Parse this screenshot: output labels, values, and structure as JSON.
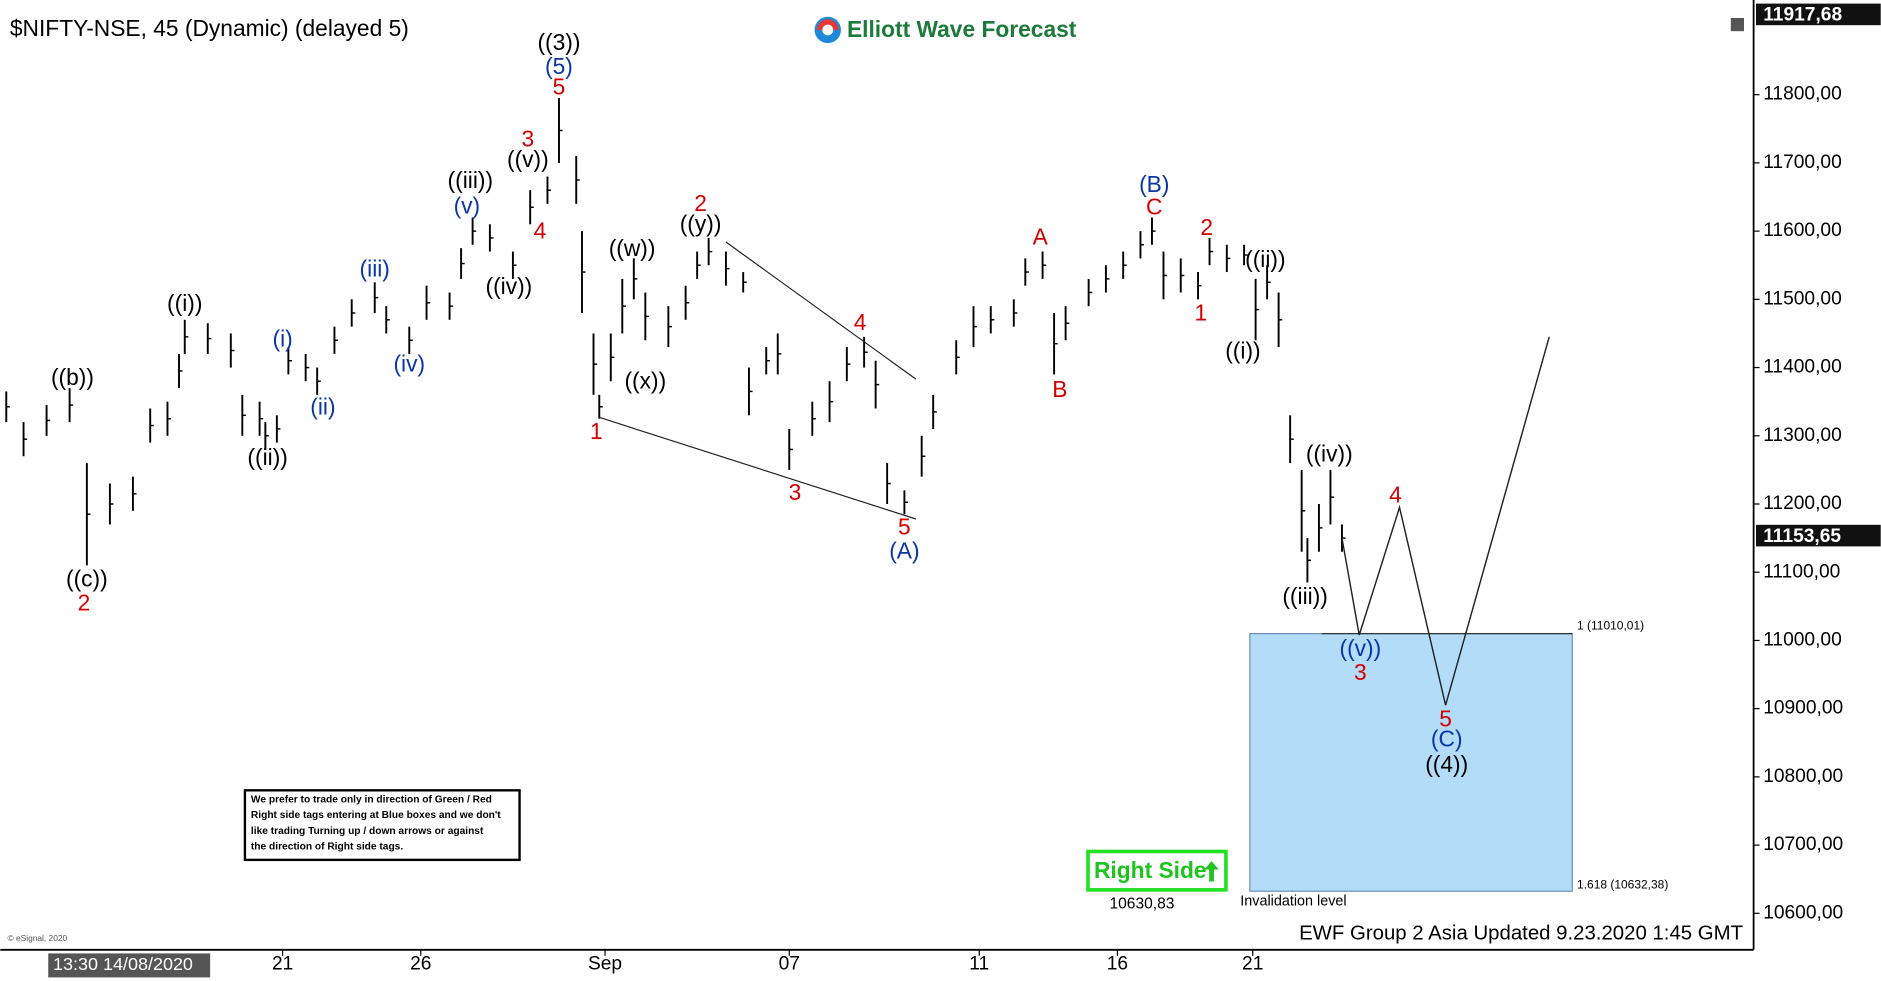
{
  "chart_data": {
    "type": "ohlc",
    "title": "$NIFTY-NSE, 45 (Dynamic) (delayed 5)",
    "logo": "Elliott Wave Forecast",
    "footer": "EWF Group 2 Asia Updated 9.23.2020 1:45 GMT",
    "copyright": "© eSignal, 2020",
    "start_label": "13:30 14/08/2020",
    "note": [
      "We prefer to trade only in direction of Green / Red",
      "Right side tags entering at Blue boxes and we don't",
      "like trading Turning up / down arrows or against",
      "the direction of Right side tags."
    ],
    "right_side": {
      "label": "Right Side",
      "price": {
        "value": 10630.83,
        "label": "10630,83"
      }
    },
    "invalidation_label": "Invalidation level",
    "xlim": [
      0,
      303.5
    ],
    "ylim": [
      10550,
      11930
    ],
    "xticks": [
      {
        "value": 48,
        "label": "21"
      },
      {
        "value": 72,
        "label": "26"
      },
      {
        "value": 104,
        "label": "Sep"
      },
      {
        "value": 136,
        "label": "07"
      },
      {
        "value": 169,
        "label": "11"
      },
      {
        "value": 193,
        "label": "16"
      },
      {
        "value": 216.5,
        "label": "21"
      }
    ],
    "yticks": [
      {
        "value": 10600,
        "label": "10600,00"
      },
      {
        "value": 10700,
        "label": "10700,00"
      },
      {
        "value": 10800,
        "label": "10800,00"
      },
      {
        "value": 10900,
        "label": "10900,00"
      },
      {
        "value": 11000,
        "label": "11000,00"
      },
      {
        "value": 11100,
        "label": "11100,00"
      },
      {
        "value": 11200,
        "label": "11200,00"
      },
      {
        "value": 11300,
        "label": "11300,00"
      },
      {
        "value": 11400,
        "label": "11400,00"
      },
      {
        "value": 11500,
        "label": "11500,00"
      },
      {
        "value": 11600,
        "label": "11600,00"
      },
      {
        "value": 11700,
        "label": "11700,00"
      },
      {
        "value": 11800,
        "label": "11800,00"
      }
    ],
    "price_tags": [
      {
        "value": 11917.68,
        "label": "11917,68"
      },
      {
        "value": 11153.65,
        "label": "11153,65"
      }
    ],
    "bars": {
      "x": [
        0,
        3,
        7,
        11,
        14,
        18,
        22,
        25,
        28,
        30,
        31,
        35,
        39,
        41,
        44,
        45,
        47,
        49,
        52,
        54,
        57,
        60,
        64,
        66,
        70,
        73,
        77,
        79,
        81,
        84,
        88,
        91,
        94,
        96,
        99,
        100,
        102,
        103,
        105,
        107,
        109,
        111,
        115,
        118,
        120,
        122,
        125,
        128,
        129,
        132,
        134,
        136,
        140,
        143,
        146,
        149,
        151,
        153,
        156,
        159,
        161,
        165,
        168,
        171,
        175,
        177,
        180,
        182,
        184,
        188,
        191,
        194,
        197,
        199,
        201,
        204,
        207,
        209,
        212,
        215,
        217,
        219,
        221,
        223,
        225,
        226,
        228,
        230,
        232
      ],
      "high": [
        11365,
        11320,
        11345,
        11370,
        11260,
        11230,
        11240,
        11340,
        11350,
        11420,
        11470,
        11465,
        11450,
        11360,
        11350,
        11320,
        11330,
        11430,
        11420,
        11400,
        11460,
        11500,
        11525,
        11490,
        11460,
        11520,
        11510,
        11575,
        11620,
        11610,
        11570,
        11660,
        11680,
        11795,
        11710,
        11600,
        11450,
        11360,
        11450,
        11530,
        11560,
        11510,
        11490,
        11520,
        11570,
        11590,
        11570,
        11540,
        11400,
        11430,
        11450,
        11310,
        11350,
        11380,
        11430,
        11445,
        11410,
        11260,
        11220,
        11300,
        11360,
        11440,
        11490,
        11490,
        11500,
        11560,
        11570,
        11480,
        11490,
        11530,
        11550,
        11570,
        11600,
        11620,
        11570,
        11560,
        11540,
        11590,
        11580,
        11580,
        11530,
        11550,
        11510,
        11330,
        11250,
        11150,
        11200,
        11250,
        11170
      ],
      "low": [
        11320,
        11270,
        11300,
        11320,
        11110,
        11170,
        11190,
        11290,
        11300,
        11370,
        11420,
        11420,
        11400,
        11300,
        11300,
        11280,
        11290,
        11390,
        11380,
        11360,
        11420,
        11460,
        11480,
        11450,
        11420,
        11470,
        11470,
        11530,
        11580,
        11570,
        11530,
        11610,
        11640,
        11700,
        11640,
        11480,
        11360,
        11325,
        11380,
        11450,
        11500,
        11440,
        11430,
        11470,
        11530,
        11550,
        11520,
        11510,
        11330,
        11390,
        11390,
        11250,
        11300,
        11320,
        11380,
        11400,
        11340,
        11200,
        11185,
        11240,
        11310,
        11390,
        11430,
        11450,
        11460,
        11520,
        11530,
        11390,
        11440,
        11490,
        11510,
        11530,
        11560,
        11580,
        11500,
        11510,
        11500,
        11550,
        11540,
        11550,
        11440,
        11500,
        11430,
        11260,
        11130,
        11085,
        11130,
        11170,
        11130
      ]
    },
    "trendlines": [
      {
        "x": [
          103,
          158
        ],
        "y": [
          11327,
          11178
        ]
      },
      {
        "x": [
          125,
          158
        ],
        "y": [
          11584,
          11383
        ]
      }
    ],
    "projection": {
      "x": [
        232,
        235,
        242,
        250,
        268
      ],
      "y": [
        11150,
        11008,
        11195,
        10905,
        11445
      ]
    },
    "target_box": {
      "x": [
        216,
        272
      ],
      "top": 11010.01,
      "bottom": 10632.38,
      "top_label": "1 (11010,01)",
      "bottom_label": "1.618 (10632,38)",
      "color": "#b3dcf9"
    },
    "annotations": [
      {
        "text": "((b))",
        "color": "#000000",
        "x": 11.5,
        "y": 11383
      },
      {
        "text": "((c))",
        "color": "#000000",
        "x": 14,
        "y": 11088
      },
      {
        "text": "2",
        "color": "#d40000",
        "x": 13.5,
        "y": 11053
      },
      {
        "text": "((i))",
        "color": "#000000",
        "x": 31,
        "y": 11492
      },
      {
        "text": "((ii))",
        "color": "#000000",
        "x": 45.4,
        "y": 11266
      },
      {
        "text": "(i)",
        "color": "#0a35a8",
        "x": 48,
        "y": 11440
      },
      {
        "text": "(ii)",
        "color": "#0a35a8",
        "x": 55,
        "y": 11340
      },
      {
        "text": "(iii)",
        "color": "#0a35a8",
        "x": 64,
        "y": 11542
      },
      {
        "text": "(iv)",
        "color": "#0a35a8",
        "x": 70,
        "y": 11403
      },
      {
        "text": "(v)",
        "color": "#0a35a8",
        "x": 80,
        "y": 11635
      },
      {
        "text": "((iii))",
        "color": "#000000",
        "x": 80.6,
        "y": 11672
      },
      {
        "text": "((iv))",
        "color": "#000000",
        "x": 87.3,
        "y": 11517
      },
      {
        "text": "((v))",
        "color": "#000000",
        "x": 90.6,
        "y": 11703
      },
      {
        "text": "3",
        "color": "#d40000",
        "x": 90.6,
        "y": 11733
      },
      {
        "text": "4",
        "color": "#d40000",
        "x": 92.7,
        "y": 11598
      },
      {
        "text": "((3))",
        "color": "#000000",
        "x": 96,
        "y": 11874
      },
      {
        "text": "(5)",
        "color": "#0a35a8",
        "x": 96,
        "y": 11839
      },
      {
        "text": "5",
        "color": "#d40000",
        "x": 96,
        "y": 11809
      },
      {
        "text": "1",
        "color": "#d40000",
        "x": 102.5,
        "y": 11304
      },
      {
        "text": "((w))",
        "color": "#000000",
        "x": 108.7,
        "y": 11572
      },
      {
        "text": "((x))",
        "color": "#000000",
        "x": 111,
        "y": 11378
      },
      {
        "text": "2",
        "color": "#d40000",
        "x": 120.6,
        "y": 11638
      },
      {
        "text": "((y))",
        "color": "#000000",
        "x": 120.6,
        "y": 11608
      },
      {
        "text": "4",
        "color": "#d40000",
        "x": 148.3,
        "y": 11464
      },
      {
        "text": "3",
        "color": "#d40000",
        "x": 137,
        "y": 11215
      },
      {
        "text": "5",
        "color": "#d40000",
        "x": 156,
        "y": 11164
      },
      {
        "text": "(A)",
        "color": "#0a35a8",
        "x": 156,
        "y": 11129
      },
      {
        "text": "A",
        "color": "#d40000",
        "x": 179.6,
        "y": 11589
      },
      {
        "text": "B",
        "color": "#d40000",
        "x": 183,
        "y": 11366
      },
      {
        "text": "(B)",
        "color": "#0a35a8",
        "x": 199.4,
        "y": 11666
      },
      {
        "text": "C",
        "color": "#d40000",
        "x": 199.4,
        "y": 11633
      },
      {
        "text": "2",
        "color": "#d40000",
        "x": 208.5,
        "y": 11603
      },
      {
        "text": "((ii))",
        "color": "#000000",
        "x": 218.7,
        "y": 11556
      },
      {
        "text": "1",
        "color": "#d40000",
        "x": 207.5,
        "y": 11478
      },
      {
        "text": "((i))",
        "color": "#000000",
        "x": 214.8,
        "y": 11422
      },
      {
        "text": "((iv))",
        "color": "#000000",
        "x": 229.8,
        "y": 11271
      },
      {
        "text": "4",
        "color": "#d40000",
        "x": 241.3,
        "y": 11211
      },
      {
        "text": "((iii))",
        "color": "#000000",
        "x": 225.6,
        "y": 11062
      },
      {
        "text": "((v))",
        "color": "#0a35a8",
        "x": 235.2,
        "y": 10986
      },
      {
        "text": "3",
        "color": "#d40000",
        "x": 235.2,
        "y": 10951
      },
      {
        "text": "5",
        "color": "#d40000",
        "x": 250,
        "y": 10883
      },
      {
        "text": "(C)",
        "color": "#0a35a8",
        "x": 250.2,
        "y": 10853
      },
      {
        "text": "((4))",
        "color": "#000000",
        "x": 250.2,
        "y": 10816
      }
    ]
  }
}
